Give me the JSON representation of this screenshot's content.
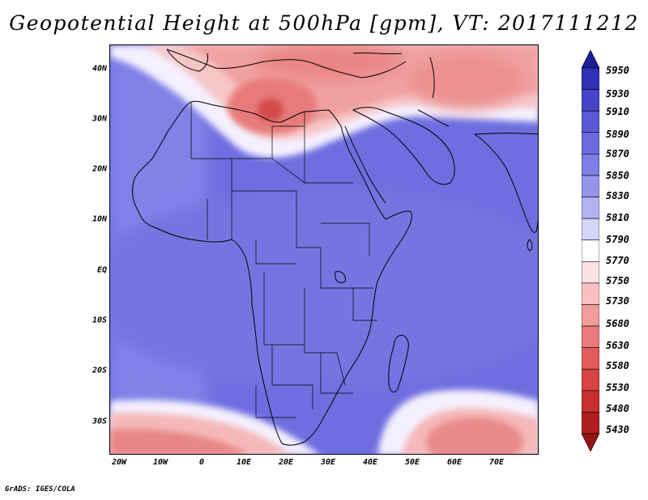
{
  "title": "Geopotential Height at 500hPa [gpm], VT: 2017111212",
  "credit": "GrADS: IGES/COLA",
  "map": {
    "lat_labels": [
      "40N",
      "30N",
      "20N",
      "10N",
      "EQ",
      "10S",
      "20S",
      "30S"
    ],
    "lon_labels": [
      "20W",
      "10W",
      "0",
      "10E",
      "20E",
      "30E",
      "40E",
      "50E",
      "60E",
      "70E"
    ]
  },
  "colorbar": {
    "levels": [
      "5950",
      "5930",
      "5910",
      "5890",
      "5870",
      "5850",
      "5830",
      "5810",
      "5790",
      "5770",
      "5750",
      "5730",
      "5680",
      "5630",
      "5580",
      "5530",
      "5480",
      "5430"
    ],
    "colors": [
      "#1e1e9a",
      "#3030b4",
      "#4545c8",
      "#5a5ad6",
      "#6b6bdf",
      "#7e7ee6",
      "#9595ec",
      "#b2b2f3",
      "#d6d6fa",
      "#ffffff",
      "#fde2e2",
      "#f8c0c0",
      "#f29c9c",
      "#ea7a7a",
      "#e25c5c",
      "#d84343",
      "#c82e2e",
      "#b01f1f",
      "#961414"
    ]
  }
}
